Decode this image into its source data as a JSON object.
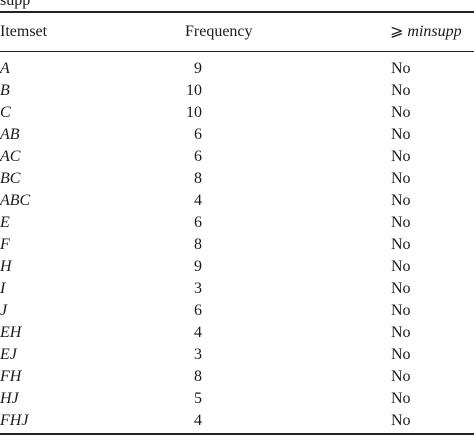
{
  "caption_fragment": "supp",
  "table": {
    "headers": {
      "itemset": "Itemset",
      "frequency": "Frequency",
      "minsupp_symbol": "⩾",
      "minsupp_term": "minsupp"
    },
    "rows": [
      {
        "itemset": "A",
        "frequency": "9",
        "meets": "No"
      },
      {
        "itemset": "B",
        "frequency": "10",
        "meets": "No"
      },
      {
        "itemset": "C",
        "frequency": "10",
        "meets": "No"
      },
      {
        "itemset": "AB",
        "frequency": "6",
        "meets": "No"
      },
      {
        "itemset": "AC",
        "frequency": "6",
        "meets": "No"
      },
      {
        "itemset": "BC",
        "frequency": "8",
        "meets": "No"
      },
      {
        "itemset": "ABC",
        "frequency": "4",
        "meets": "No"
      },
      {
        "itemset": "E",
        "frequency": "6",
        "meets": "No"
      },
      {
        "itemset": "F",
        "frequency": "8",
        "meets": "No"
      },
      {
        "itemset": "H",
        "frequency": "9",
        "meets": "No"
      },
      {
        "itemset": "I",
        "frequency": "3",
        "meets": "No"
      },
      {
        "itemset": "J",
        "frequency": "6",
        "meets": "No"
      },
      {
        "itemset": "EH",
        "frequency": "4",
        "meets": "No"
      },
      {
        "itemset": "EJ",
        "frequency": "3",
        "meets": "No"
      },
      {
        "itemset": "FH",
        "frequency": "8",
        "meets": "No"
      },
      {
        "itemset": "HJ",
        "frequency": "5",
        "meets": "No"
      },
      {
        "itemset": "FHJ",
        "frequency": "4",
        "meets": "No"
      }
    ]
  }
}
